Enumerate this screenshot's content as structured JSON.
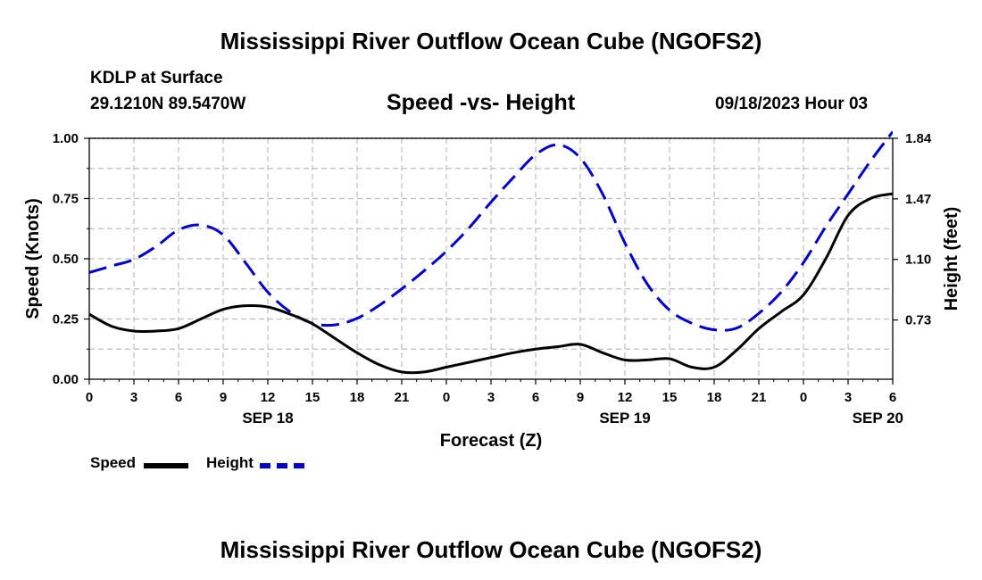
{
  "header": {
    "title": "Mississippi River Outflow Ocean Cube (NGOFS2)",
    "station": "KDLP at Surface",
    "coords": "29.1210N  89.5470W",
    "subtitle": "Speed -vs- Height",
    "datetime": "09/18/2023 Hour 03"
  },
  "footer": {
    "title": "Mississippi River Outflow Ocean Cube (NGOFS2)"
  },
  "legend": {
    "items": [
      {
        "label": "Speed",
        "color": "#000000",
        "style": "solid"
      },
      {
        "label": "Height",
        "color": "#0000cc",
        "style": "dashed"
      }
    ]
  },
  "chart_data": {
    "type": "line",
    "title": "Speed -vs- Height",
    "xlabel": "Forecast (Z)",
    "ylabel": "Speed (Knots)",
    "y2label": "Height (feet)",
    "xlim": [
      0,
      54
    ],
    "ylim": [
      0,
      1.0
    ],
    "y2lim": [
      0.368,
      1.84
    ],
    "x_ticks": [
      0,
      3,
      6,
      9,
      12,
      15,
      18,
      21,
      24,
      27,
      30,
      33,
      36,
      39,
      42,
      45,
      48,
      51,
      54
    ],
    "x_tick_labels": [
      "0",
      "3",
      "6",
      "9",
      "12",
      "15",
      "18",
      "21",
      "0",
      "3",
      "6",
      "9",
      "12",
      "15",
      "18",
      "21",
      "0",
      "3",
      "6"
    ],
    "date_labels": [
      {
        "x": 12,
        "label": "SEP 18"
      },
      {
        "x": 36,
        "label": "SEP 19"
      },
      {
        "x": 53,
        "label": "SEP 20"
      }
    ],
    "y_ticks": [
      0,
      0.25,
      0.5,
      0.75,
      1.0
    ],
    "y_tick_labels": [
      "0.00",
      "0.25",
      "0.50",
      "0.75",
      "1.00"
    ],
    "y2_ticks": [
      0.73,
      1.1,
      1.47,
      1.84
    ],
    "y2_tick_labels": [
      "0.73",
      "1.10",
      "1.47",
      "1.84"
    ],
    "grid": true,
    "series": [
      {
        "name": "Speed",
        "axis": "left",
        "color": "#000000",
        "x": [
          0,
          1.5,
          3,
          4.5,
          6,
          7.5,
          9,
          10.5,
          12,
          13.5,
          15,
          16.5,
          18,
          19.5,
          21,
          22.5,
          24,
          25.5,
          27,
          28.5,
          30,
          31.5,
          33,
          34.5,
          36,
          37.5,
          39,
          40.5,
          42,
          43.5,
          45,
          46.5,
          48,
          49.5,
          51,
          52.5,
          54
        ],
        "values": [
          0.27,
          0.22,
          0.2,
          0.2,
          0.21,
          0.25,
          0.29,
          0.305,
          0.3,
          0.27,
          0.23,
          0.17,
          0.11,
          0.06,
          0.03,
          0.03,
          0.05,
          0.07,
          0.09,
          0.11,
          0.125,
          0.135,
          0.145,
          0.11,
          0.08,
          0.08,
          0.085,
          0.05,
          0.05,
          0.12,
          0.21,
          0.28,
          0.35,
          0.5,
          0.68,
          0.75,
          0.77
        ]
      },
      {
        "name": "Height",
        "axis": "right",
        "color": "#0000cc",
        "x": [
          0,
          1.5,
          3,
          4.5,
          6,
          7.5,
          9,
          10.5,
          12,
          13.5,
          15,
          16.5,
          18,
          19.5,
          21,
          22.5,
          24,
          25.5,
          27,
          28.5,
          30,
          31.5,
          33,
          34.5,
          36,
          37.5,
          39,
          40.5,
          42,
          43.5,
          45,
          46.5,
          48,
          49.5,
          51,
          52.5,
          54
        ],
        "values": [
          1.02,
          1.06,
          1.1,
          1.18,
          1.28,
          1.31,
          1.25,
          1.08,
          0.9,
          0.78,
          0.71,
          0.7,
          0.74,
          0.82,
          0.92,
          1.03,
          1.15,
          1.29,
          1.45,
          1.6,
          1.74,
          1.8,
          1.72,
          1.5,
          1.2,
          0.95,
          0.79,
          0.71,
          0.67,
          0.68,
          0.77,
          0.9,
          1.08,
          1.3,
          1.5,
          1.7,
          1.88
        ]
      }
    ]
  }
}
